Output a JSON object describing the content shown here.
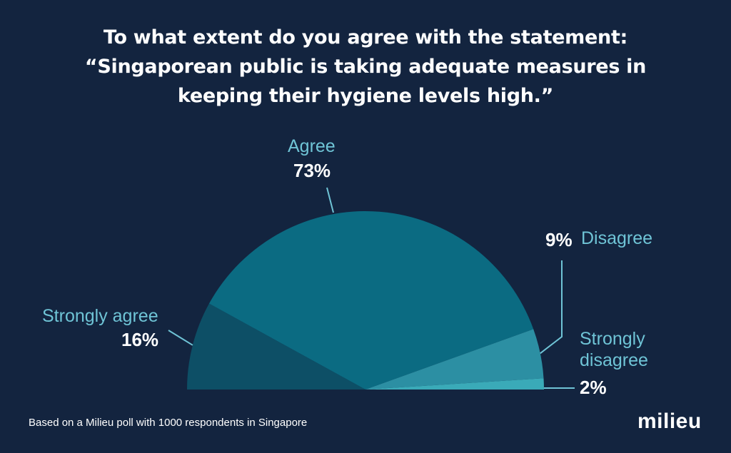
{
  "title_lines": [
    "To what extent do you agree with the statement:",
    "“Singaporean public is taking adequate measures in",
    "keeping their hygiene levels high.”"
  ],
  "chart_data": {
    "type": "pie",
    "style": "half-donut (semicircle)",
    "slices": [
      {
        "label": "Strongly agree",
        "value": 16,
        "value_label": "16%",
        "color": "#0d4f66"
      },
      {
        "label": "Agree",
        "value": 73,
        "value_label": "73%",
        "color": "#0b6b82"
      },
      {
        "label": "Disagree",
        "value": 9,
        "value_label": "9%",
        "color": "#2c8fa3"
      },
      {
        "label": "Strongly disagree",
        "value": 2,
        "value_label": "2%",
        "color": "#3aaab8"
      }
    ],
    "label_color": "#6fc4d6",
    "leader_color": "#6fc4d6"
  },
  "footnote": "Based on a Milieu poll with 1000 respondents in Singapore",
  "logo": "milieu"
}
